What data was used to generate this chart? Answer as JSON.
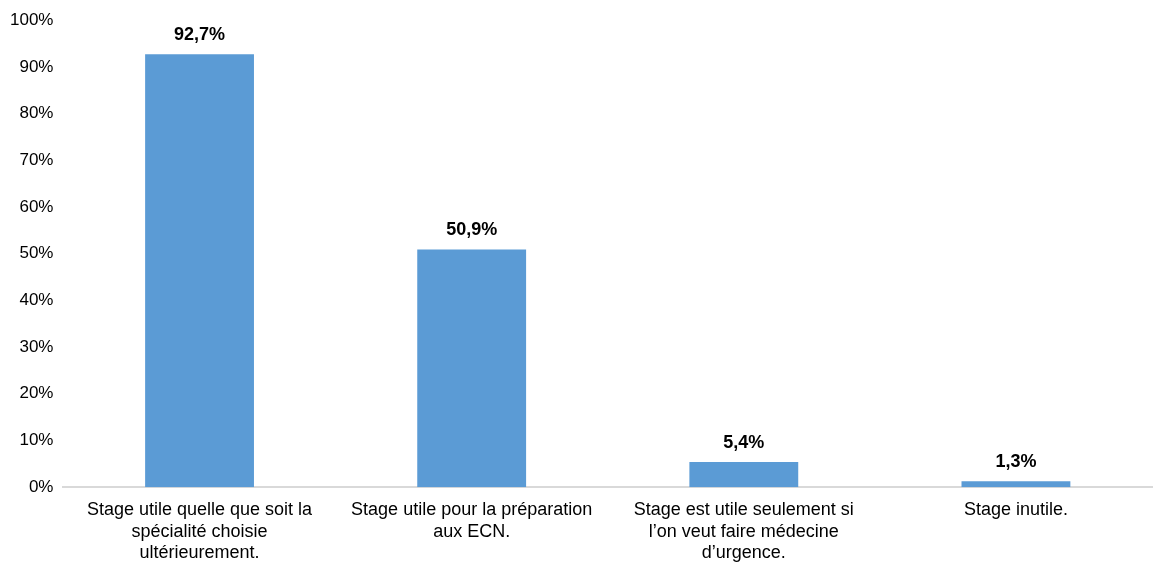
{
  "chart_data": {
    "type": "bar",
    "categories": [
      "Stage utile quelle que soit la spécialité choisie ultérieurement.",
      "Stage utile pour la préparation aux ECN.",
      "Stage est utile seulement si l’on veut faire médecine d’urgence.",
      "Stage inutile."
    ],
    "values": [
      92.7,
      50.9,
      5.4,
      1.3
    ],
    "value_labels": [
      "92,7%",
      "50,9%",
      "5,4%",
      "1,3%"
    ],
    "color": "#5b9bd5",
    "ylim": [
      0,
      100
    ],
    "yticks": [
      {
        "value": 0,
        "label": "0%"
      },
      {
        "value": 10,
        "label": "10%"
      },
      {
        "value": 20,
        "label": "20%"
      },
      {
        "value": 30,
        "label": "30%"
      },
      {
        "value": 40,
        "label": "40%"
      },
      {
        "value": 50,
        "label": "50%"
      },
      {
        "value": 60,
        "label": "60%"
      },
      {
        "value": 70,
        "label": "70%"
      },
      {
        "value": 80,
        "label": "80%"
      },
      {
        "value": 90,
        "label": "90%"
      },
      {
        "value": 100,
        "label": "100%"
      }
    ],
    "grid": false,
    "legend": false
  }
}
